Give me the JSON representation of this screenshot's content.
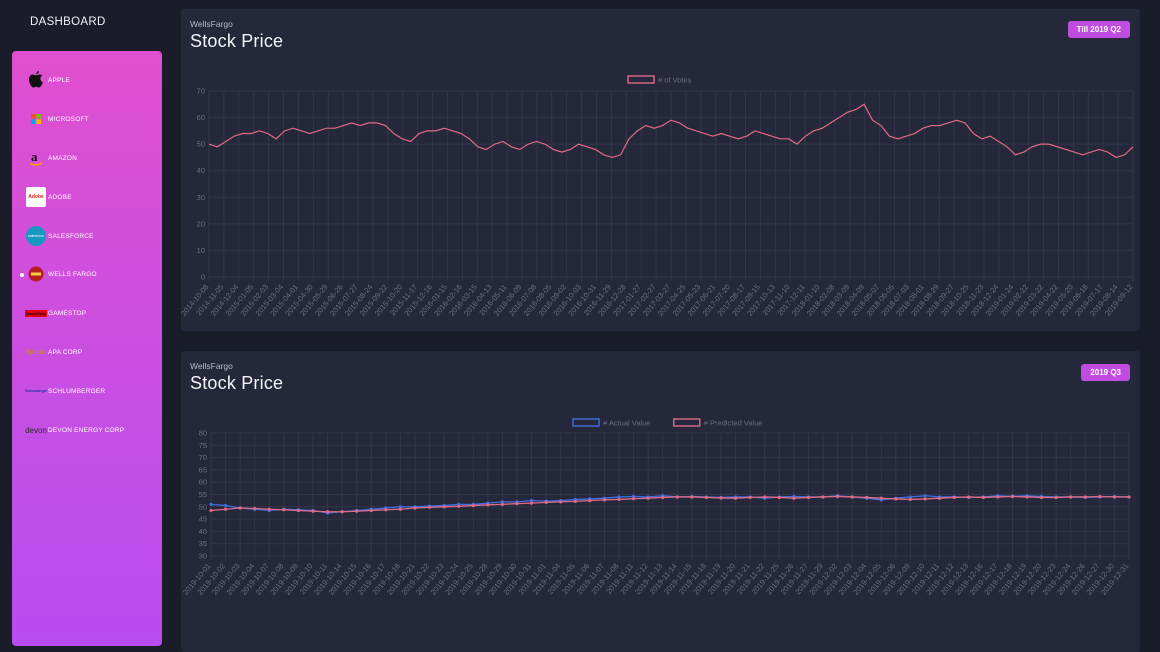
{
  "brand": "DASHBOARD",
  "sidebar": {
    "active_index": 5,
    "items": [
      {
        "label": "APPLE",
        "icon": "apple-logo-icon"
      },
      {
        "label": "MICROSOFT",
        "icon": "microsoft-logo-icon"
      },
      {
        "label": "AMAZON",
        "icon": "amazon-logo-icon"
      },
      {
        "label": "ADOBE",
        "icon": "adobe-logo-icon",
        "logo_text": "Adobe"
      },
      {
        "label": "SALESFORCE",
        "icon": "salesforce-logo-icon",
        "logo_text": "salesforce"
      },
      {
        "label": "WELLS FARGO",
        "icon": "wells-fargo-logo-icon"
      },
      {
        "label": "GAMESTOP",
        "icon": "gamestop-logo-icon",
        "logo_text": "GameStop"
      },
      {
        "label": "APA CORP",
        "icon": "apache-logo-icon",
        "logo_text": "Apache"
      },
      {
        "label": "SCHLUMBERGER",
        "icon": "schlumberger-logo-icon",
        "logo_text": "Schlumberger"
      },
      {
        "label": "DEVON ENERGY CORP",
        "icon": "devon-logo-icon",
        "logo_text": "devon"
      }
    ]
  },
  "cards": [
    {
      "company": "WellsFargo",
      "title": "Stock Price",
      "badge": "Till 2019 Q2"
    },
    {
      "company": "WellsFargo",
      "title": "Stock Price",
      "badge": "2019 Q3"
    }
  ],
  "colors": {
    "accent": "#c14de0",
    "actual": "#3f6fe0",
    "predicted": "#e06b86",
    "grid": "#33354a"
  },
  "chart_data": [
    {
      "type": "line",
      "legend": [
        "# of Votes"
      ],
      "legend_placement": "top",
      "grid": true,
      "ylim": [
        0,
        70
      ],
      "yticks": [
        0,
        10,
        20,
        30,
        40,
        50,
        60,
        70
      ],
      "xticks": [
        "2014-10-08",
        "2014-11-05",
        "2014-12-04",
        "2015-01-05",
        "2015-02-03",
        "2015-03-04",
        "2015-04-01",
        "2015-04-30",
        "2015-05-29",
        "2015-06-26",
        "2015-07-27",
        "2015-08-24",
        "2015-09-22",
        "2015-10-20",
        "2015-11-17",
        "2015-12-16",
        "2016-01-15",
        "2016-02-16",
        "2016-03-15",
        "2016-04-13",
        "2016-05-11",
        "2016-06-09",
        "2016-07-08",
        "2016-08-05",
        "2016-09-02",
        "2016-10-03",
        "2016-10-31",
        "2016-11-29",
        "2016-12-28",
        "2017-01-27",
        "2017-02-27",
        "2017-03-27",
        "2017-04-25",
        "2017-05-23",
        "2017-06-21",
        "2017-07-20",
        "2017-08-17",
        "2017-09-15",
        "2017-10-13",
        "2017-11-10",
        "2017-12-11",
        "2018-01-10",
        "2018-02-08",
        "2018-03-09",
        "2018-04-09",
        "2018-05-07",
        "2018-06-05",
        "2018-07-03",
        "2018-08-01",
        "2018-08-29",
        "2018-09-27",
        "2018-10-25",
        "2018-11-23",
        "2018-12-24",
        "2019-01-24",
        "2019-02-22",
        "2019-03-22",
        "2019-04-22",
        "2019-05-20",
        "2019-06-18",
        "2019-07-17",
        "2019-08-14",
        "2019-09-12"
      ],
      "series": [
        {
          "name": "# of Votes",
          "values": [
            50,
            49,
            51,
            53,
            54,
            54,
            55,
            54,
            52,
            55,
            56,
            55,
            54,
            55,
            56,
            56,
            57,
            58,
            57,
            58,
            58,
            57,
            54,
            52,
            51,
            54,
            55,
            55,
            56,
            55,
            54,
            52,
            49,
            48,
            50,
            51,
            49,
            48,
            50,
            51,
            50,
            48,
            47,
            48,
            50,
            49,
            48,
            46,
            45,
            46,
            52,
            55,
            57,
            56,
            57,
            59,
            58,
            56,
            55,
            54,
            53,
            54,
            53,
            52,
            53,
            55,
            54,
            53,
            52,
            52,
            50,
            53,
            55,
            56,
            58,
            60,
            62,
            63,
            65,
            59,
            57,
            53,
            52,
            53,
            54,
            56,
            57,
            57,
            58,
            59,
            58,
            54,
            52,
            53,
            51,
            49,
            46,
            47,
            49,
            50,
            50,
            49,
            48,
            47,
            46,
            47,
            48,
            47,
            45,
            46,
            49
          ]
        }
      ]
    },
    {
      "type": "line",
      "legend": [
        "# Actual Value",
        "# Predicted Value"
      ],
      "legend_placement": "top",
      "grid": true,
      "ylim": [
        30,
        80
      ],
      "yticks": [
        30,
        35,
        40,
        45,
        50,
        55,
        60,
        65,
        70,
        75,
        80
      ],
      "xticks": [
        "2019-10-01",
        "2019-10-02",
        "2019-10-03",
        "2019-10-04",
        "2019-10-07",
        "2019-10-08",
        "2019-10-09",
        "2019-10-10",
        "2019-10-11",
        "2019-10-14",
        "2019-10-15",
        "2019-10-16",
        "2019-10-17",
        "2019-10-18",
        "2019-10-21",
        "2019-10-22",
        "2019-10-23",
        "2019-10-24",
        "2019-10-25",
        "2019-10-28",
        "2019-10-29",
        "2019-10-30",
        "2019-10-31",
        "2019-11-01",
        "2019-11-04",
        "2019-11-05",
        "2019-11-06",
        "2019-11-07",
        "2019-11-08",
        "2019-11-11",
        "2019-11-12",
        "2019-11-13",
        "2019-11-14",
        "2019-11-15",
        "2019-11-18",
        "2019-11-19",
        "2019-11-20",
        "2019-11-21",
        "2019-11-22",
        "2019-11-25",
        "2019-11-26",
        "2019-11-27",
        "2019-11-29",
        "2019-12-02",
        "2019-12-03",
        "2019-12-04",
        "2019-12-05",
        "2019-12-06",
        "2019-12-09",
        "2019-12-10",
        "2019-12-11",
        "2019-12-12",
        "2019-12-13",
        "2019-12-16",
        "2019-12-17",
        "2019-12-18",
        "2019-12-19",
        "2019-12-20",
        "2019-12-23",
        "2019-12-24",
        "2019-12-26",
        "2019-12-27",
        "2019-12-30",
        "2019-12-31"
      ],
      "series": [
        {
          "name": "# Actual Value",
          "values": [
            51,
            50.5,
            49.5,
            49,
            48.5,
            49,
            48.8,
            48.5,
            47.5,
            48,
            48.5,
            49,
            49.5,
            50,
            50,
            50.3,
            50.5,
            51,
            51,
            51.5,
            52,
            52,
            52.5,
            52.3,
            52.5,
            53,
            53.2,
            53.5,
            54,
            54.2,
            54,
            54.5,
            54,
            54.2,
            54,
            53.8,
            54,
            54,
            53.5,
            54,
            54.2,
            54,
            54,
            54.5,
            54,
            53.5,
            52.8,
            53.5,
            54,
            54.5,
            54,
            54,
            53.8,
            54,
            54.5,
            54.3,
            54.5,
            54.2,
            54,
            54,
            53.8,
            54,
            54.2,
            54
          ]
        },
        {
          "name": "# Predicted Value",
          "values": [
            48.5,
            49,
            49.5,
            49.3,
            49,
            48.8,
            48.5,
            48.2,
            48,
            48,
            48.2,
            48.5,
            48.8,
            49,
            49.5,
            49.8,
            50,
            50.2,
            50.5,
            50.8,
            51,
            51.3,
            51.5,
            51.8,
            52,
            52.2,
            52.5,
            52.8,
            53,
            53.3,
            53.5,
            53.8,
            54,
            54,
            53.8,
            53.6,
            53.5,
            53.8,
            54,
            53.8,
            53.5,
            53.8,
            54,
            54.2,
            54,
            53.8,
            53.5,
            53.2,
            53,
            53.2,
            53.5,
            53.8,
            54,
            53.8,
            54,
            54.2,
            54,
            53.8,
            53.8,
            54,
            54,
            54.2,
            54,
            54
          ]
        }
      ]
    }
  ]
}
